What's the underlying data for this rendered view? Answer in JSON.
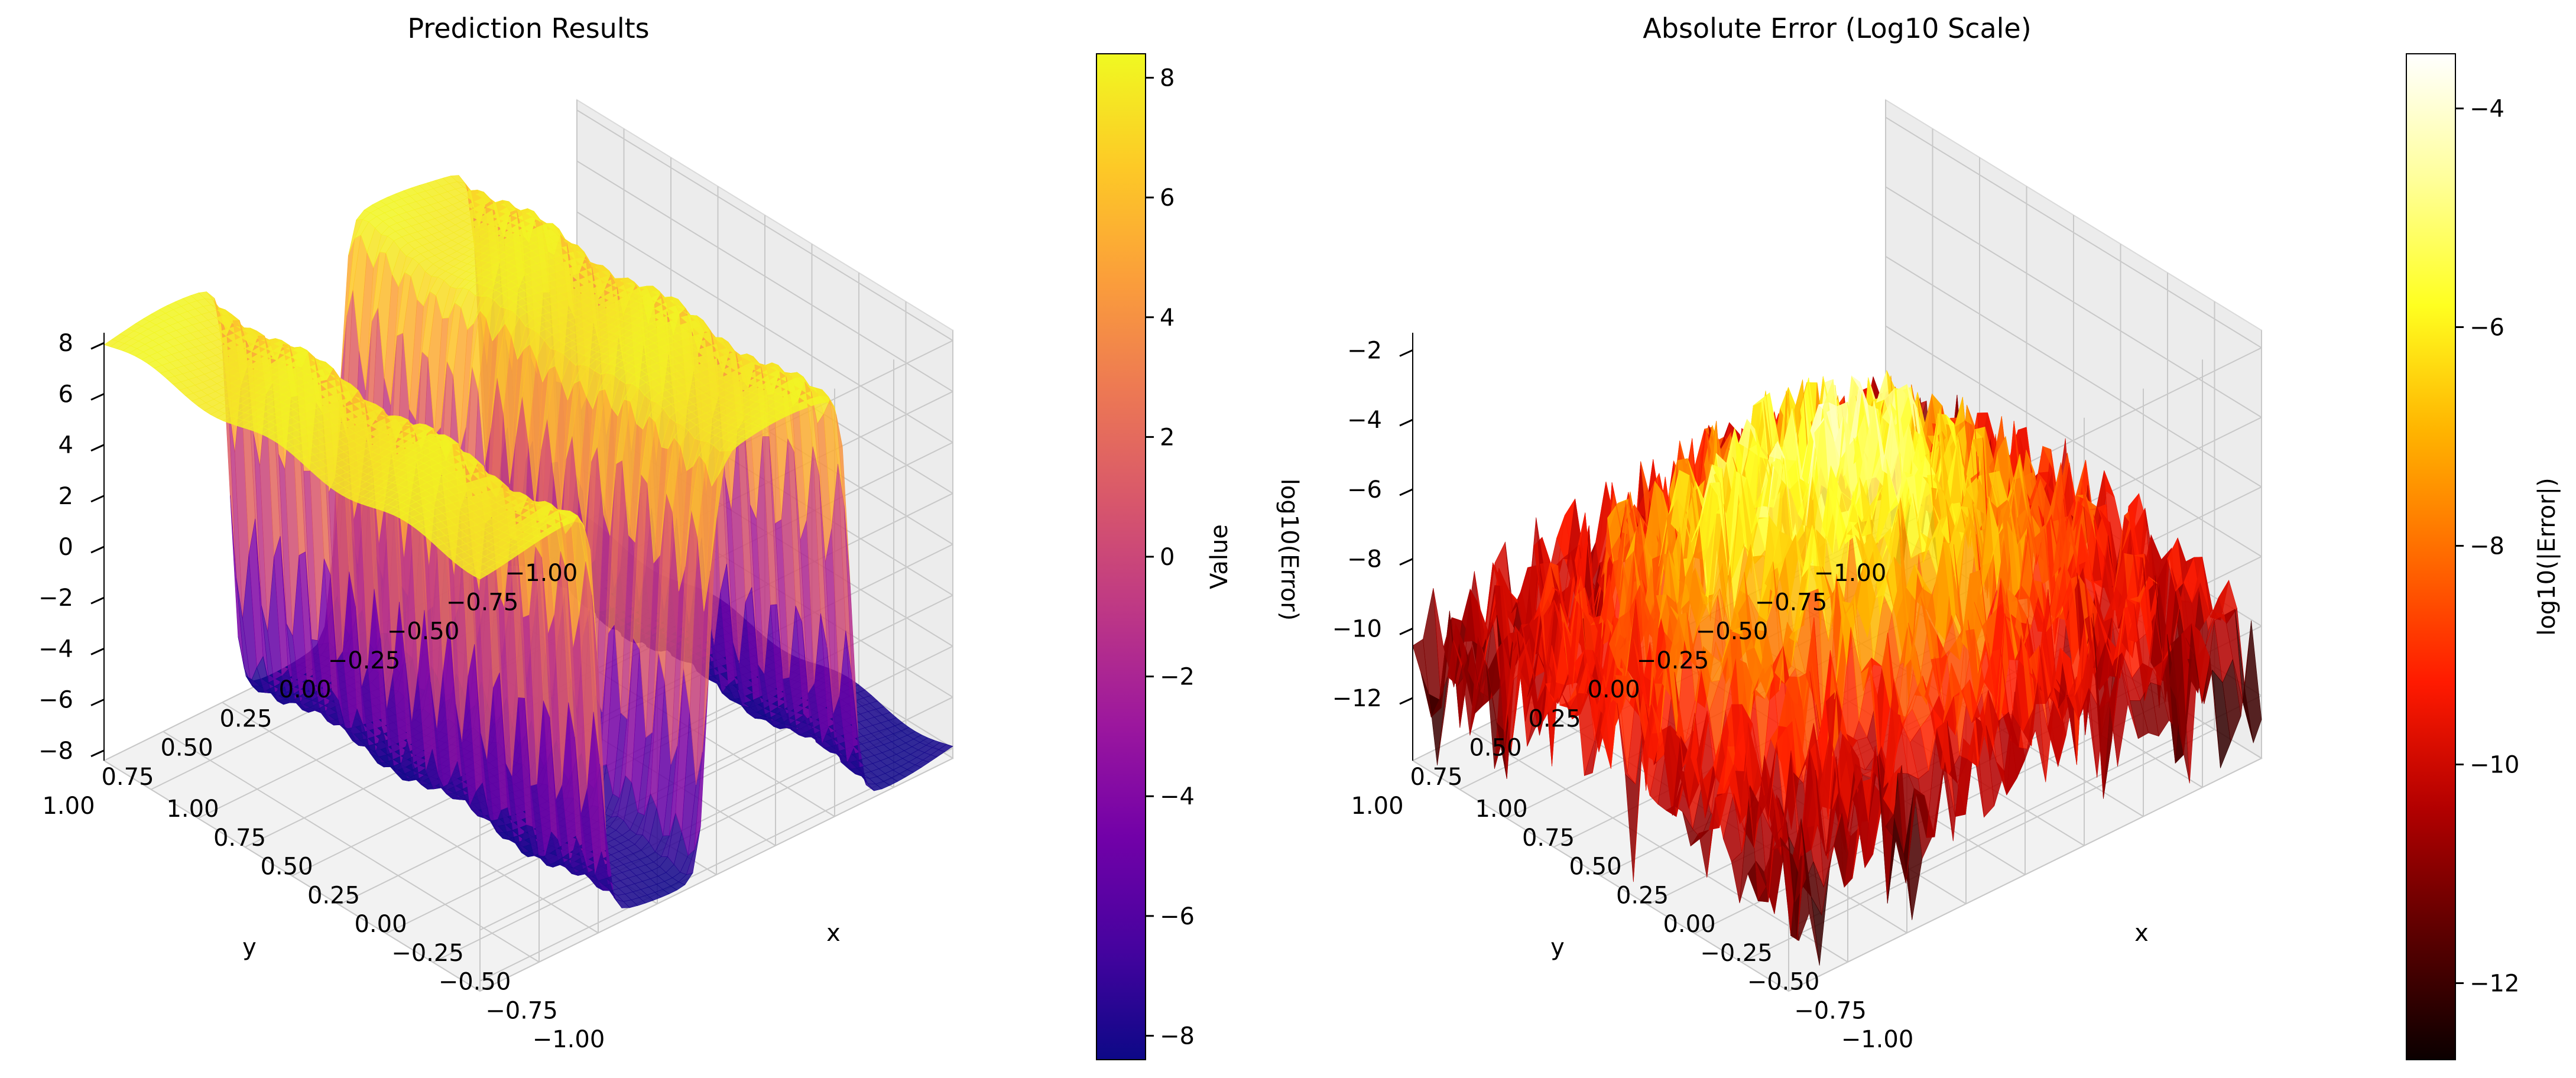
{
  "chart_data": [
    {
      "type": "surface3d",
      "title": "Prediction Results",
      "xlabel": "x",
      "ylabel": "y",
      "zlabel": "",
      "colorbar_label": "Value",
      "colormap": "plasma",
      "colormap_stops": [
        "#0d0887",
        "#46039f",
        "#7201a8",
        "#9c179e",
        "#bd3786",
        "#d8576b",
        "#ed7953",
        "#fb9f3a",
        "#fdca26",
        "#f0f921"
      ],
      "x_ticks": [
        "−1.00",
        "−0.75",
        "−0.50",
        "−0.25",
        "0.00",
        "0.25",
        "0.50",
        "0.75",
        "1.00"
      ],
      "y_ticks": [
        "−1.00",
        "−0.75",
        "−0.50",
        "−0.25",
        "0.00",
        "0.25",
        "0.50",
        "0.75",
        "1.00"
      ],
      "z_ticks": [
        "8",
        "6",
        "4",
        "2",
        "0",
        "−2",
        "−4",
        "−6",
        "−8"
      ],
      "colorbar_ticks": [
        "8",
        "6",
        "4",
        "2",
        "0",
        "−2",
        "−4",
        "−6",
        "−8"
      ],
      "xlim": [
        -1,
        1
      ],
      "ylim": [
        -1,
        1
      ],
      "zlim": [
        -8.4,
        8.4
      ],
      "colorbar_range": [
        -8.4,
        8.4
      ],
      "description_of_surface": "step function in y: low plateau about −8 at y < −0.6, high plateau about +8 for −0.6 < y < 0, low about −8 for 0 < y < 0.5, high about +8 for y > 0.5; oscillating edges along x",
      "z_profile_along_y": {
        "y": [
          -1.0,
          -0.6,
          -0.55,
          0.0,
          0.05,
          0.45,
          0.5,
          1.0
        ],
        "z": [
          -8,
          -8,
          8,
          8,
          -8,
          -8,
          8,
          8
        ]
      }
    },
    {
      "type": "surface3d",
      "title": "Absolute Error (Log10 Scale)",
      "xlabel": "x",
      "ylabel": "y",
      "zlabel": "log10(Error)",
      "colorbar_label": "log10(|Error|)",
      "colormap": "hot",
      "colormap_stops": [
        "#0b0000",
        "#5c0000",
        "#b30000",
        "#ff1a00",
        "#ff6a00",
        "#ffb400",
        "#ffff20",
        "#ffff9a",
        "#ffffff"
      ],
      "x_ticks": [
        "−1.00",
        "−0.75",
        "−0.50",
        "−0.25",
        "0.00",
        "0.25",
        "0.50",
        "0.75",
        "1.00"
      ],
      "y_ticks": [
        "−1.00",
        "−0.75",
        "−0.50",
        "−0.25",
        "0.00",
        "0.25",
        "0.50",
        "0.75",
        "1.00"
      ],
      "z_ticks": [
        "−2",
        "−4",
        "−6",
        "−8",
        "−10",
        "−12"
      ],
      "colorbar_ticks": [
        "−4",
        "−6",
        "−8",
        "−10",
        "−12"
      ],
      "xlim": [
        -1,
        1
      ],
      "ylim": [
        -1,
        1
      ],
      "zlim": [
        -13.8,
        -1.5
      ],
      "colorbar_range": [
        -12.7,
        -3.5
      ],
      "description_of_surface": "noisy error surface mostly between −12 and −3; highest values (≈ −3.5) near the center, lowest (≈ −13) deep spikes in the front",
      "z_range_observed": [
        -13.5,
        -3.5
      ]
    }
  ]
}
